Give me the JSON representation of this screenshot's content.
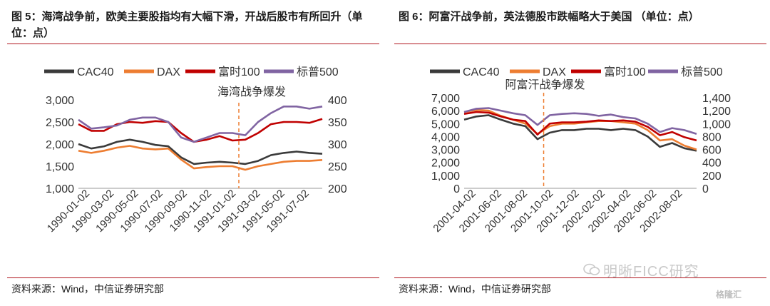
{
  "charts": [
    {
      "title": "图 5：海湾战争前，欧美主要股指均有大幅下滑，开战后股市有所回升（单位：点）",
      "source": "资料来源：Wind，中信证券研究部",
      "annotation": "海湾战争爆发",
      "legend": [
        "CAC40",
        "DAX",
        "富时100",
        "标普500"
      ]
    },
    {
      "title": "图 6：阿富汗战争前，英法德股市跌幅略大于美国 （单位：点）",
      "source": "资料来源：Wind，中信证券研究部",
      "annotation": "阿富汗战争爆发",
      "legend": [
        "CAC40",
        "DAX",
        "富时100",
        "标普500"
      ]
    }
  ],
  "watermark": "明晰FICC研究",
  "logo": "格隆汇",
  "colors": {
    "cac40": "#3a3a3a",
    "dax": "#ed7d31",
    "ftse": "#c00000",
    "spx": "#8064a2",
    "rule": "#b0171f",
    "event": "#ed7d31"
  },
  "chart_data": [
    {
      "type": "line",
      "title": "图 5：海湾战争前，欧美主要股指均有大幅下滑，开战后股市有所回升（单位：点）",
      "categories": [
        "1990-01-02",
        "1990-03-02",
        "1990-05-02",
        "1990-07-02",
        "1990-09-02",
        "1990-11-02",
        "1991-01-02",
        "1991-03-02",
        "1991-05-02",
        "1991-07-02"
      ],
      "x": [
        0,
        1,
        2,
        3,
        4,
        5,
        6,
        7,
        8,
        9,
        10,
        11,
        12,
        13,
        14,
        15,
        16,
        17,
        18,
        19
      ],
      "ylim_left": [
        1000,
        3000
      ],
      "yticks_left": [
        "1,000",
        "1,500",
        "2,000",
        "2,500",
        "3,000"
      ],
      "ylim_right": [
        200,
        400
      ],
      "yticks_right": [
        "200",
        "250",
        "300",
        "350",
        "400"
      ],
      "event_x": 12.5,
      "annotation": "海湾战争爆发",
      "series": [
        {
          "name": "CAC40",
          "axis": "left",
          "values": [
            2000,
            1900,
            1950,
            2050,
            2100,
            2050,
            1980,
            1950,
            1700,
            1550,
            1580,
            1600,
            1580,
            1550,
            1620,
            1750,
            1800,
            1830,
            1800,
            1780
          ]
        },
        {
          "name": "DAX",
          "axis": "left",
          "values": [
            1850,
            1800,
            1850,
            1920,
            1960,
            1900,
            1880,
            1900,
            1650,
            1450,
            1480,
            1500,
            1500,
            1420,
            1500,
            1550,
            1600,
            1620,
            1620,
            1640
          ]
        },
        {
          "name": "富时100",
          "axis": "right",
          "values": [
            345,
            330,
            330,
            345,
            350,
            348,
            352,
            350,
            325,
            305,
            310,
            318,
            308,
            310,
            325,
            345,
            350,
            350,
            348,
            357
          ]
        },
        {
          "name": "标普500",
          "axis": "right",
          "values": [
            355,
            335,
            338,
            342,
            355,
            360,
            360,
            350,
            315,
            305,
            315,
            325,
            325,
            320,
            350,
            370,
            385,
            385,
            380,
            385
          ]
        }
      ]
    },
    {
      "type": "line",
      "title": "图 6：阿富汗战争前，英法德股市跌幅略大于美国 （单位：点）",
      "categories": [
        "2001-04-02",
        "2001-06-02",
        "2001-08-02",
        "2001-10-02",
        "2001-12-02",
        "2002-02-02",
        "2002-04-02",
        "2002-06-02",
        "2002-08-02"
      ],
      "x": [
        0,
        1,
        2,
        3,
        4,
        5,
        6,
        7,
        8,
        9,
        10,
        11,
        12,
        13,
        14,
        15,
        16,
        17,
        18,
        19
      ],
      "ylim_left": [
        0,
        7000
      ],
      "yticks_left": [
        "0",
        "1,000",
        "2,000",
        "3,000",
        "4,000",
        "5,000",
        "6,000",
        "7,000"
      ],
      "ylim_right": [
        0,
        1400
      ],
      "yticks_right": [
        "0",
        "200",
        "400",
        "600",
        "800",
        "1,000",
        "1,200",
        "1,400"
      ],
      "event_x": 6.5,
      "annotation": "阿富汗战争爆发",
      "series": [
        {
          "name": "CAC40",
          "axis": "left",
          "values": [
            5300,
            5550,
            5650,
            5300,
            5000,
            4800,
            3800,
            4300,
            4500,
            4500,
            4600,
            4600,
            4500,
            4600,
            4500,
            4000,
            3200,
            3500,
            3100,
            2900
          ]
        },
        {
          "name": "DAX",
          "axis": "left",
          "values": [
            5900,
            6050,
            6000,
            5600,
            5300,
            5000,
            4200,
            4800,
            5000,
            5000,
            5100,
            5200,
            5200,
            5100,
            5000,
            4500,
            3700,
            3800,
            3300,
            3000
          ]
        },
        {
          "name": "富时100",
          "axis": "right",
          "values": [
            1150,
            1180,
            1170,
            1110,
            1060,
            1040,
            830,
            1000,
            1020,
            1020,
            1030,
            1050,
            1040,
            1050,
            1030,
            950,
            820,
            870,
            790,
            740
          ]
        },
        {
          "name": "标普500",
          "axis": "right",
          "values": [
            1180,
            1230,
            1240,
            1200,
            1160,
            1130,
            980,
            1130,
            1150,
            1160,
            1150,
            1120,
            1140,
            1100,
            1080,
            1000,
            870,
            930,
            900,
            840
          ]
        }
      ]
    }
  ]
}
